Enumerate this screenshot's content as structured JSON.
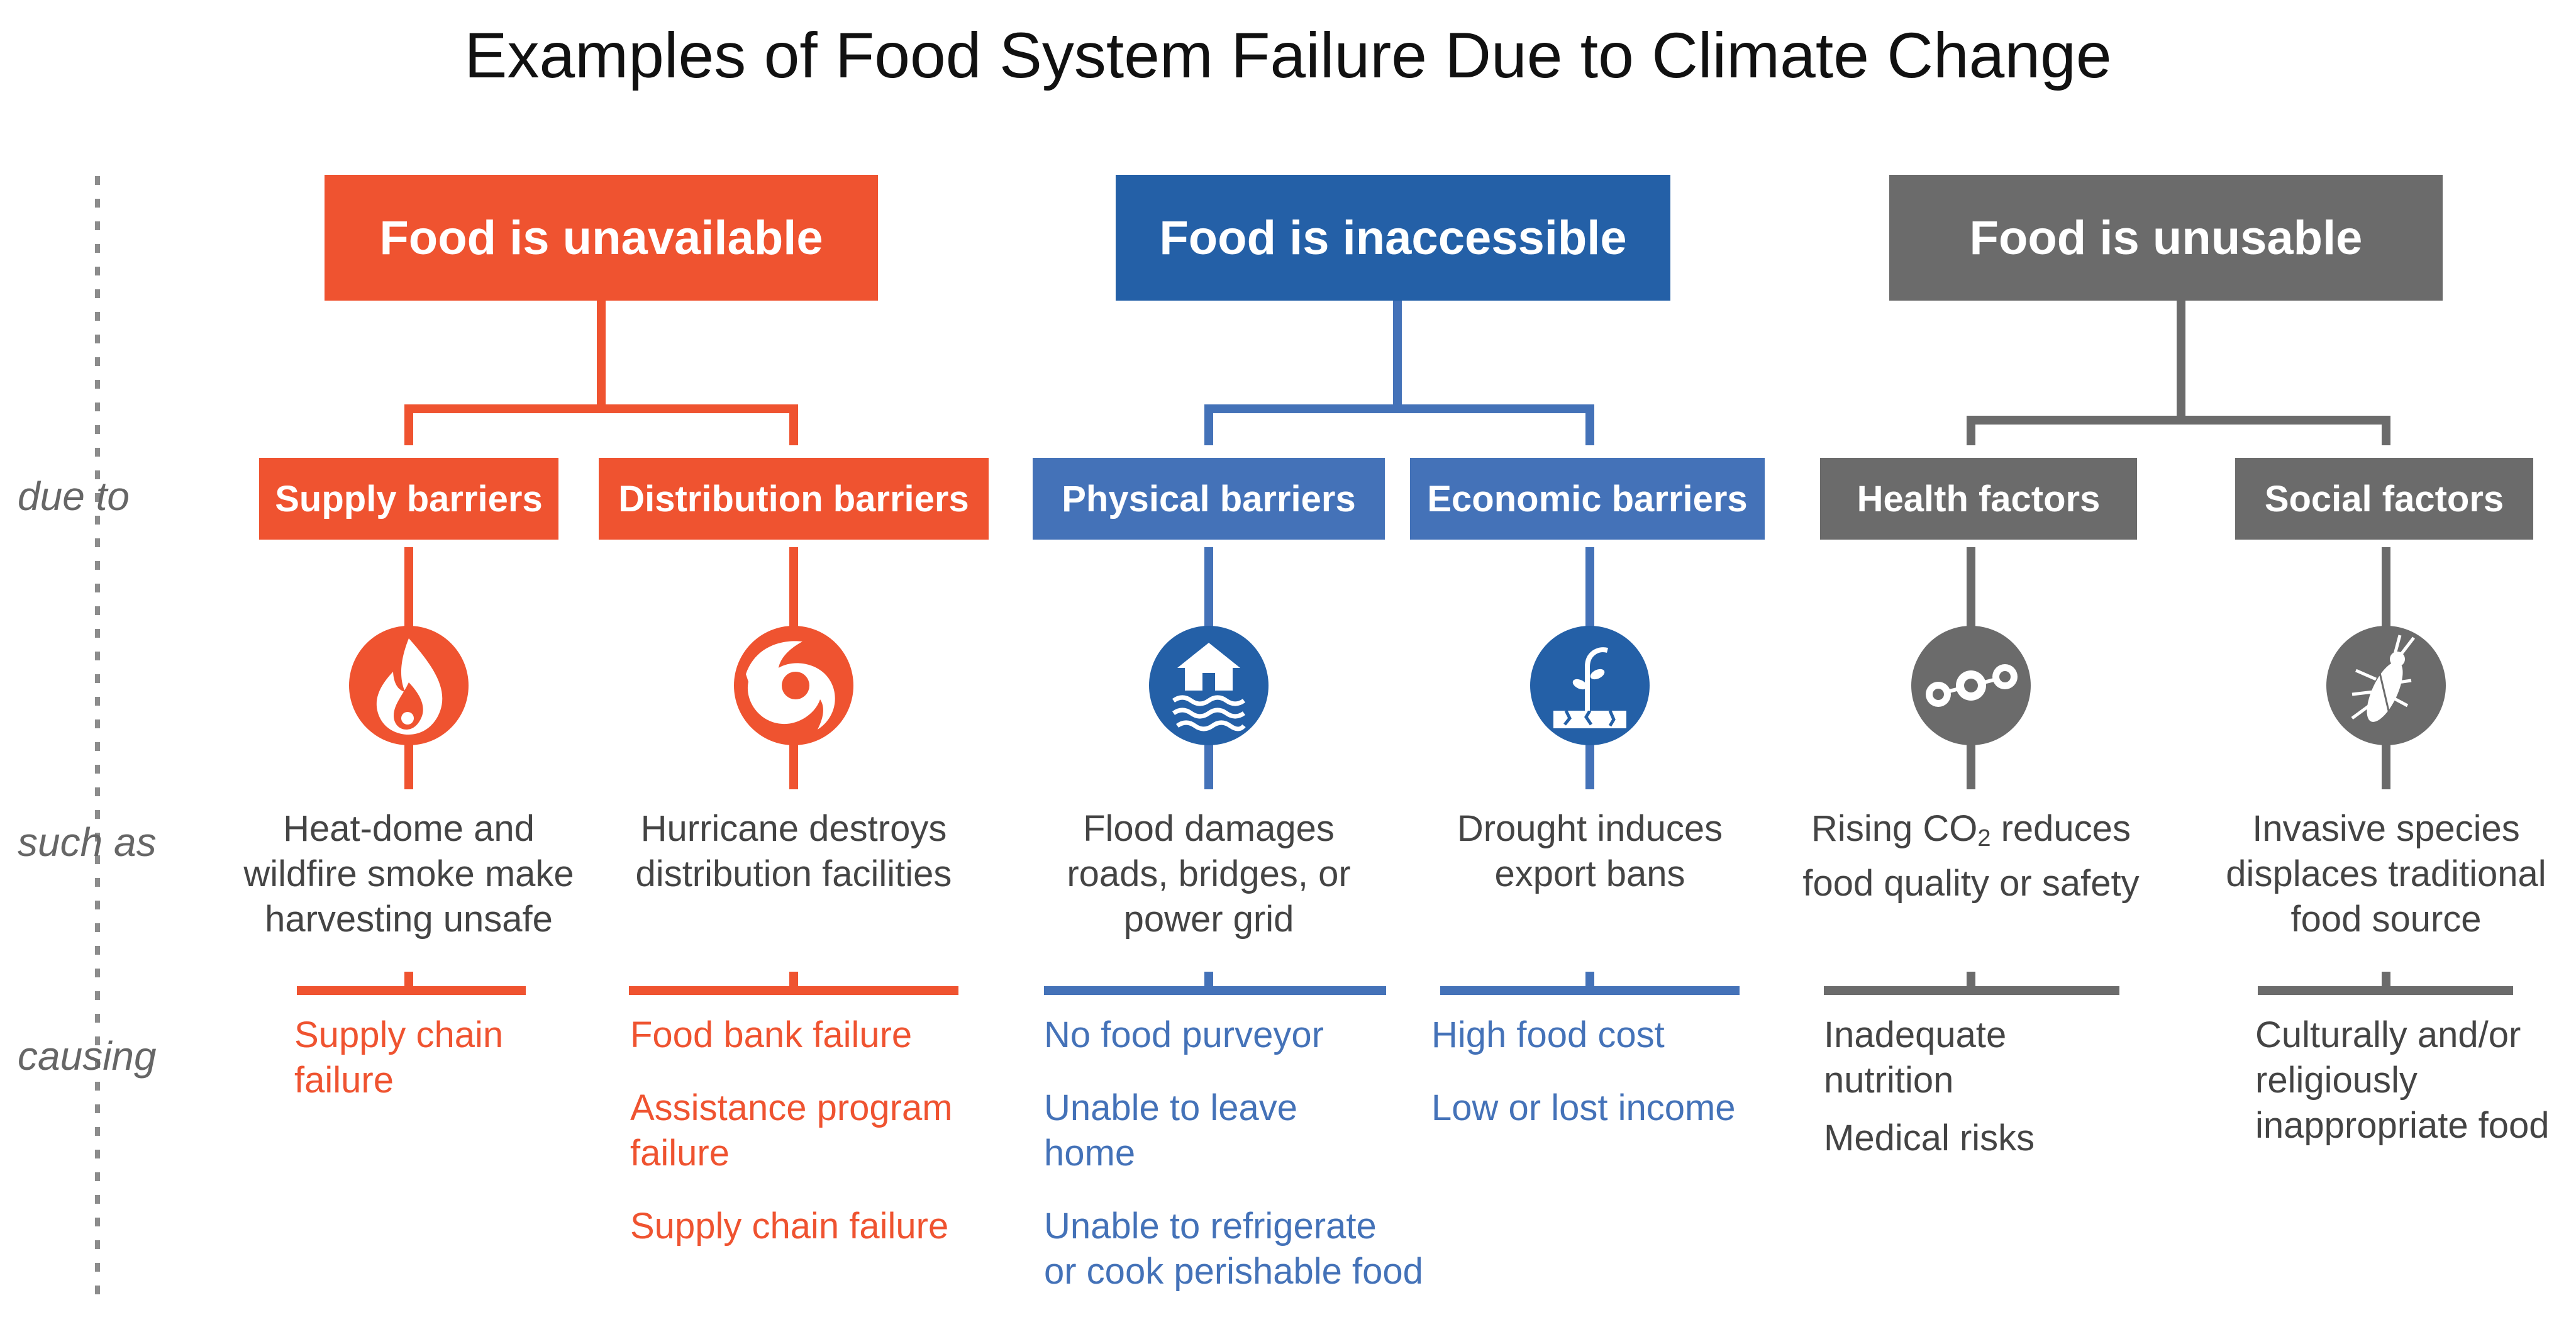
{
  "title": "Examples of Food System Failure Due to Climate Change",
  "row_labels": {
    "due_to": "due to",
    "such_as": "such as",
    "causing": "causing"
  },
  "colors": {
    "unavailable": "#ef5330",
    "inaccessible": "#2460a7",
    "inaccessible_sub": "#4472b8",
    "unusable": "#6b6b6b",
    "dotted_line": "#8c8c8c",
    "text_gray": "#444444"
  },
  "categories": [
    {
      "label": "Food is unavailable",
      "barriers": [
        {
          "label": "Supply barriers",
          "icon": "fire-icon",
          "example": "Heat-dome and\nwildfire smoke make\nharvesting unsafe",
          "outcomes": [
            "Supply chain\nfailure"
          ]
        },
        {
          "label": "Distribution barriers",
          "icon": "hurricane-icon",
          "example": "Hurricane destroys\ndistribution facilities",
          "outcomes": [
            "Food bank failure",
            "Assistance program\nfailure",
            "Supply chain failure"
          ]
        }
      ]
    },
    {
      "label": "Food is inaccessible",
      "barriers": [
        {
          "label": "Physical barriers",
          "icon": "flood-house-icon",
          "example": "Flood damages\nroads, bridges, or\npower grid",
          "outcomes": [
            "No food purveyor",
            "Unable to leave\nhome",
            "Unable to refrigerate\nor cook perishable food"
          ]
        },
        {
          "label": "Economic barriers",
          "icon": "drought-icon",
          "example": "Drought induces\nexport bans",
          "outcomes": [
            "High food cost",
            "Low or lost income"
          ]
        }
      ]
    },
    {
      "label": "Food is unusable",
      "barriers": [
        {
          "label": "Health factors",
          "icon": "co2-molecule-icon",
          "example_parts": [
            "Rising CO",
            "2",
            " reduces\nfood quality or safety"
          ],
          "outcomes": [
            "Inadequate\nnutrition",
            "Medical risks"
          ]
        },
        {
          "label": "Social factors",
          "icon": "insect-icon",
          "example": "Invasive species\ndisplaces traditional\nfood source",
          "outcomes": [
            "Culturally and/or\nreligiously\ninappropriate food"
          ]
        }
      ]
    }
  ]
}
